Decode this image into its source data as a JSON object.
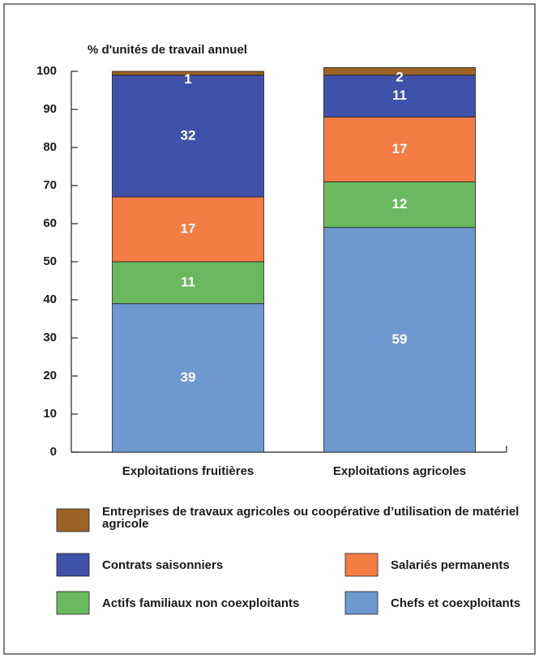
{
  "chart_data": {
    "type": "stacked_bar",
    "y_axis_label": "% d'unités de travail annuel",
    "categories": [
      "Exploitations fruitières",
      "Exploitations agricoles"
    ],
    "series": [
      {
        "name": "Chefs et coexploitants",
        "color": "#6f98d0",
        "values": [
          39,
          59
        ]
      },
      {
        "name": "Actifs familiaux non coexploitants",
        "color": "#6ab85f",
        "values": [
          11,
          12
        ]
      },
      {
        "name": "Salariés permanents",
        "color": "#f47c45",
        "values": [
          17,
          17
        ]
      },
      {
        "name": "Contrats saisonniers",
        "color": "#3f51a8",
        "values": [
          32,
          11
        ]
      },
      {
        "name": "Entreprises de travaux agricoles ou coopérative d’utilisation de matériel agricole",
        "color": "#9b6324",
        "values": [
          1,
          2
        ]
      }
    ],
    "ylim": [
      0,
      100
    ],
    "yticks": [
      0,
      10,
      20,
      30,
      40,
      50,
      60,
      70,
      80,
      90,
      100
    ]
  }
}
